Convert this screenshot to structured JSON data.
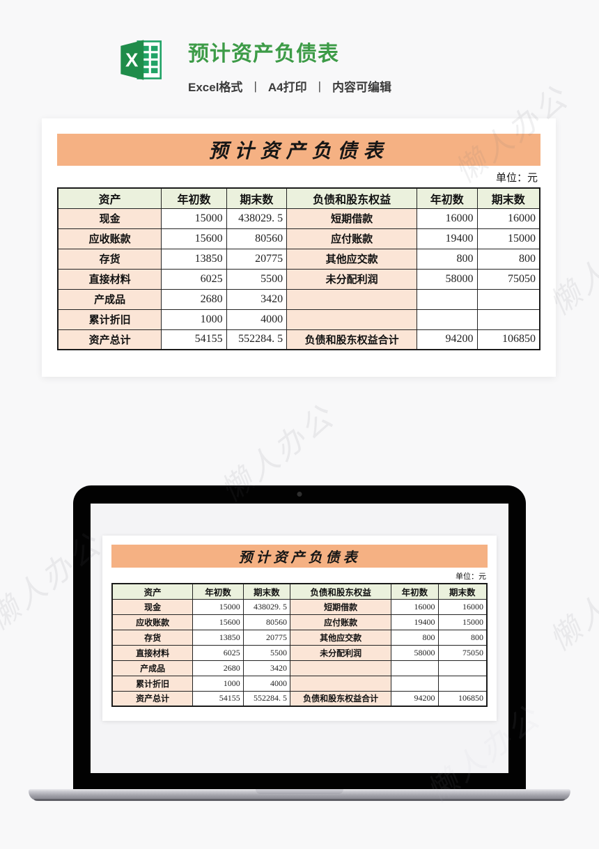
{
  "page": {
    "watermark": "懒人办公"
  },
  "header": {
    "icon": "excel-logo-icon",
    "title": "预计资产负债表",
    "subtitle_items": [
      "Excel格式",
      "A4打印",
      "内容可编辑"
    ],
    "separator": "|"
  },
  "sheet": {
    "banner_title": "预计资产负债表",
    "unit_label": "单位：元",
    "headers": [
      "资产",
      "年初数",
      "期末数",
      "负债和股东权益",
      "年初数",
      "期末数"
    ],
    "rows": [
      [
        "现金",
        "15000",
        "438029. 5",
        "短期借款",
        "16000",
        "16000"
      ],
      [
        "应收账款",
        "15600",
        "80560",
        "应付账款",
        "19400",
        "15000"
      ],
      [
        "存货",
        "13850",
        "20775",
        "其他应交款",
        "800",
        "800"
      ],
      [
        "直接材料",
        "6025",
        "5500",
        "未分配利润",
        "58000",
        "75050"
      ],
      [
        "产成品",
        "2680",
        "3420",
        "",
        "",
        ""
      ],
      [
        "累计折旧",
        "1000",
        "4000",
        "",
        "",
        ""
      ],
      [
        "资产总计",
        "54155",
        "552284. 5",
        "负债和股东权益合计",
        "94200",
        "106850"
      ]
    ]
  },
  "colors": {
    "title_green": "#3d9b47",
    "excel_icon_green": "#1f8c4a",
    "banner_orange": "#f5b183",
    "table_header_green": "#ebf1dd",
    "label_cell_peach": "#fbe5d6",
    "table_border": "#1a1a1a",
    "page_background": "#f8f8f9"
  }
}
